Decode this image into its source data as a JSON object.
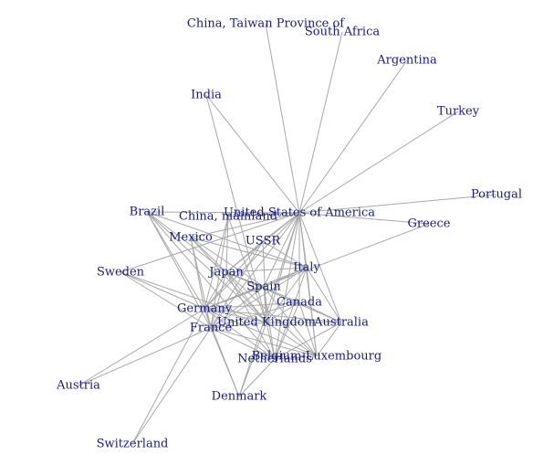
{
  "graph": {
    "title": "",
    "colors": {
      "label": "#1a1a7e",
      "edge": "#a8a8a8",
      "background": "#ffffff"
    },
    "nodes": [
      {
        "id": "usa",
        "label": "United States of America"
      },
      {
        "id": "taiwan",
        "label": "China, Taiwan Province of"
      },
      {
        "id": "southafrica",
        "label": "South Africa"
      },
      {
        "id": "argentina",
        "label": "Argentina"
      },
      {
        "id": "turkey",
        "label": "Turkey"
      },
      {
        "id": "india",
        "label": "India"
      },
      {
        "id": "portugal",
        "label": "Portugal"
      },
      {
        "id": "greece",
        "label": "Greece"
      },
      {
        "id": "brazil",
        "label": "Brazil"
      },
      {
        "id": "chinamain",
        "label": "China, mainland"
      },
      {
        "id": "mexico",
        "label": "Mexico"
      },
      {
        "id": "ussr",
        "label": "USSR"
      },
      {
        "id": "sweden",
        "label": "Sweden"
      },
      {
        "id": "japan",
        "label": "Japan"
      },
      {
        "id": "italy",
        "label": "Italy"
      },
      {
        "id": "spain",
        "label": "Spain"
      },
      {
        "id": "canada",
        "label": "Canada"
      },
      {
        "id": "germany",
        "label": "Germany"
      },
      {
        "id": "uk",
        "label": "United Kingdom"
      },
      {
        "id": "australia",
        "label": "Australia"
      },
      {
        "id": "france",
        "label": "France"
      },
      {
        "id": "belgium",
        "label": "Belgium-Luxembourg"
      },
      {
        "id": "netherlands",
        "label": "Netherlands"
      },
      {
        "id": "austria",
        "label": "Austria"
      },
      {
        "id": "denmark",
        "label": "Denmark"
      },
      {
        "id": "switzerland",
        "label": "Switzerland"
      }
    ],
    "edges": [
      [
        "usa",
        "taiwan"
      ],
      [
        "usa",
        "southafrica"
      ],
      [
        "usa",
        "argentina"
      ],
      [
        "usa",
        "turkey"
      ],
      [
        "usa",
        "india"
      ],
      [
        "usa",
        "portugal"
      ],
      [
        "usa",
        "greece"
      ],
      [
        "usa",
        "brazil"
      ],
      [
        "usa",
        "chinamain"
      ],
      [
        "usa",
        "mexico"
      ],
      [
        "usa",
        "ussr"
      ],
      [
        "usa",
        "japan"
      ],
      [
        "usa",
        "italy"
      ],
      [
        "usa",
        "spain"
      ],
      [
        "usa",
        "canada"
      ],
      [
        "usa",
        "germany"
      ],
      [
        "usa",
        "uk"
      ],
      [
        "usa",
        "australia"
      ],
      [
        "usa",
        "france"
      ],
      [
        "usa",
        "belgium"
      ],
      [
        "usa",
        "netherlands"
      ],
      [
        "usa",
        "denmark"
      ],
      [
        "usa",
        "sweden"
      ],
      [
        "india",
        "uk"
      ],
      [
        "greece",
        "germany"
      ],
      [
        "brazil",
        "germany"
      ],
      [
        "brazil",
        "france"
      ],
      [
        "brazil",
        "uk"
      ],
      [
        "brazil",
        "netherlands"
      ],
      [
        "brazil",
        "italy"
      ],
      [
        "brazil",
        "japan"
      ],
      [
        "chinamain",
        "germany"
      ],
      [
        "chinamain",
        "japan"
      ],
      [
        "chinamain",
        "france"
      ],
      [
        "chinamain",
        "uk"
      ],
      [
        "mexico",
        "germany"
      ],
      [
        "mexico",
        "spain"
      ],
      [
        "mexico",
        "japan"
      ],
      [
        "mexico",
        "uk"
      ],
      [
        "mexico",
        "italy"
      ],
      [
        "mexico",
        "france"
      ],
      [
        "ussr",
        "germany"
      ],
      [
        "ussr",
        "japan"
      ],
      [
        "ussr",
        "italy"
      ],
      [
        "ussr",
        "france"
      ],
      [
        "ussr",
        "uk"
      ],
      [
        "sweden",
        "germany"
      ],
      [
        "sweden",
        "france"
      ],
      [
        "sweden",
        "uk"
      ],
      [
        "japan",
        "germany"
      ],
      [
        "japan",
        "uk"
      ],
      [
        "japan",
        "france"
      ],
      [
        "japan",
        "australia"
      ],
      [
        "japan",
        "canada"
      ],
      [
        "japan",
        "italy"
      ],
      [
        "japan",
        "spain"
      ],
      [
        "japan",
        "belgium"
      ],
      [
        "japan",
        "netherlands"
      ],
      [
        "italy",
        "germany"
      ],
      [
        "italy",
        "france"
      ],
      [
        "italy",
        "uk"
      ],
      [
        "italy",
        "spain"
      ],
      [
        "italy",
        "belgium"
      ],
      [
        "italy",
        "netherlands"
      ],
      [
        "italy",
        "australia"
      ],
      [
        "spain",
        "germany"
      ],
      [
        "spain",
        "france"
      ],
      [
        "spain",
        "uk"
      ],
      [
        "spain",
        "netherlands"
      ],
      [
        "spain",
        "belgium"
      ],
      [
        "canada",
        "germany"
      ],
      [
        "canada",
        "uk"
      ],
      [
        "canada",
        "france"
      ],
      [
        "canada",
        "australia"
      ],
      [
        "canada",
        "netherlands"
      ],
      [
        "canada",
        "belgium"
      ],
      [
        "germany",
        "uk"
      ],
      [
        "germany",
        "france"
      ],
      [
        "germany",
        "netherlands"
      ],
      [
        "germany",
        "belgium"
      ],
      [
        "germany",
        "austria"
      ],
      [
        "germany",
        "denmark"
      ],
      [
        "germany",
        "switzerland"
      ],
      [
        "germany",
        "australia"
      ],
      [
        "uk",
        "france"
      ],
      [
        "uk",
        "australia"
      ],
      [
        "uk",
        "netherlands"
      ],
      [
        "uk",
        "belgium"
      ],
      [
        "uk",
        "denmark"
      ],
      [
        "france",
        "netherlands"
      ],
      [
        "france",
        "belgium"
      ],
      [
        "france",
        "austria"
      ],
      [
        "france",
        "switzerland"
      ],
      [
        "france",
        "denmark"
      ],
      [
        "australia",
        "belgium"
      ],
      [
        "australia",
        "netherlands"
      ],
      [
        "belgium",
        "netherlands"
      ],
      [
        "netherlands",
        "denmark"
      ]
    ]
  }
}
